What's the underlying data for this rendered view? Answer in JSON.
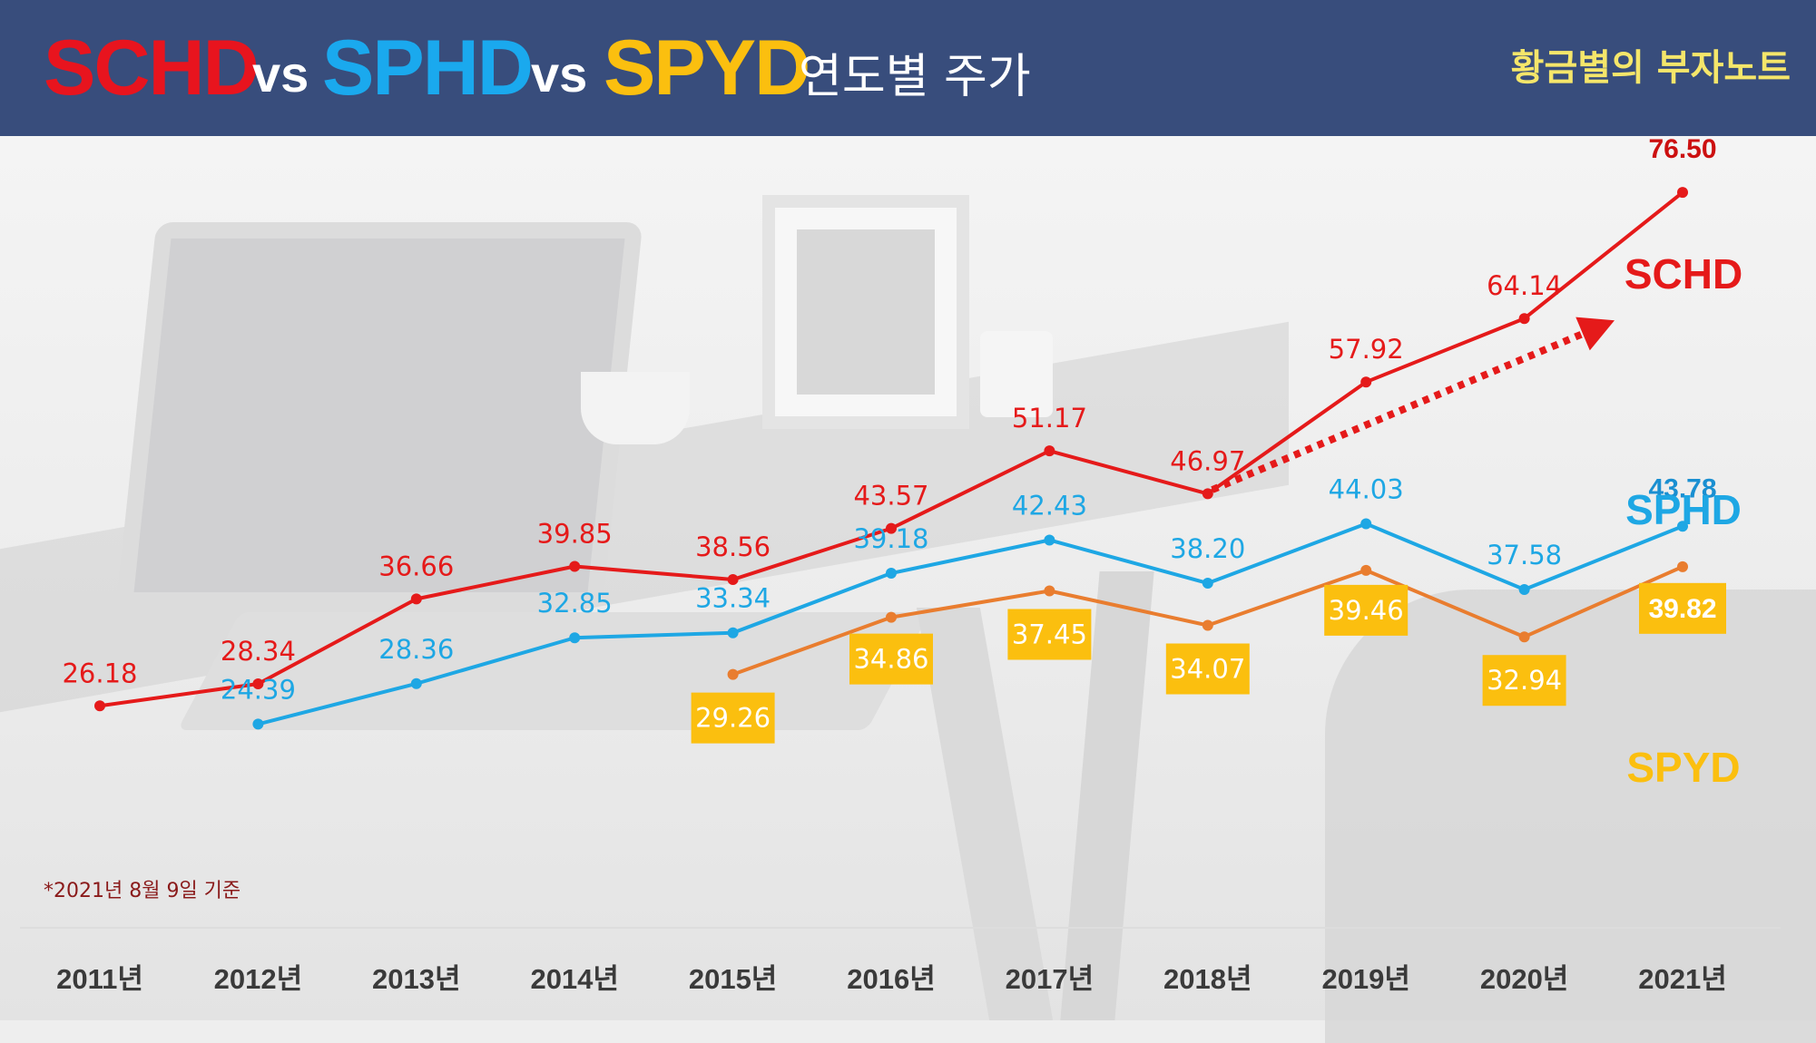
{
  "header": {
    "title_parts": [
      {
        "text": "SCHD",
        "color": "#e8141e"
      },
      {
        "text": "vs",
        "color": "#ffffff"
      },
      {
        "text": "SPHD",
        "color": "#1aa9ee"
      },
      {
        "text": "vs",
        "color": "#ffffff"
      },
      {
        "text": "SPYD",
        "color": "#fbbf0f"
      }
    ],
    "subtitle": "연도별 주가",
    "brand": "황금별의 부자노트"
  },
  "note": "*2021년 8월 9일 기준",
  "chart_data": {
    "type": "line",
    "categories": [
      "2011년",
      "2012년",
      "2013년",
      "2014년",
      "2015년",
      "2016년",
      "2017년",
      "2018년",
      "2019년",
      "2020년",
      "2021년"
    ],
    "series": [
      {
        "name": "SCHD",
        "color": "#e51a1a",
        "label_color": "#e51a1a",
        "values": [
          26.18,
          28.34,
          36.66,
          39.85,
          38.56,
          43.57,
          51.17,
          46.97,
          57.92,
          64.14,
          76.5
        ]
      },
      {
        "name": "SPHD",
        "color": "#1ea7e4",
        "label_color": "#1ea7e4",
        "values": [
          null,
          24.39,
          28.36,
          32.85,
          33.34,
          39.18,
          42.43,
          38.2,
          44.03,
          37.58,
          43.78
        ]
      },
      {
        "name": "SPYD",
        "color": "#e97d2f",
        "label_color": "#fbbf0f",
        "values": [
          null,
          null,
          null,
          null,
          29.26,
          34.86,
          37.45,
          34.07,
          39.46,
          32.94,
          39.82
        ]
      }
    ],
    "trend_arrow": {
      "color": "#e51a1a",
      "style": "dotted",
      "from_category": "2018년",
      "to_category": "2021년"
    },
    "grid": false,
    "legend": "series names at right end of lines"
  }
}
